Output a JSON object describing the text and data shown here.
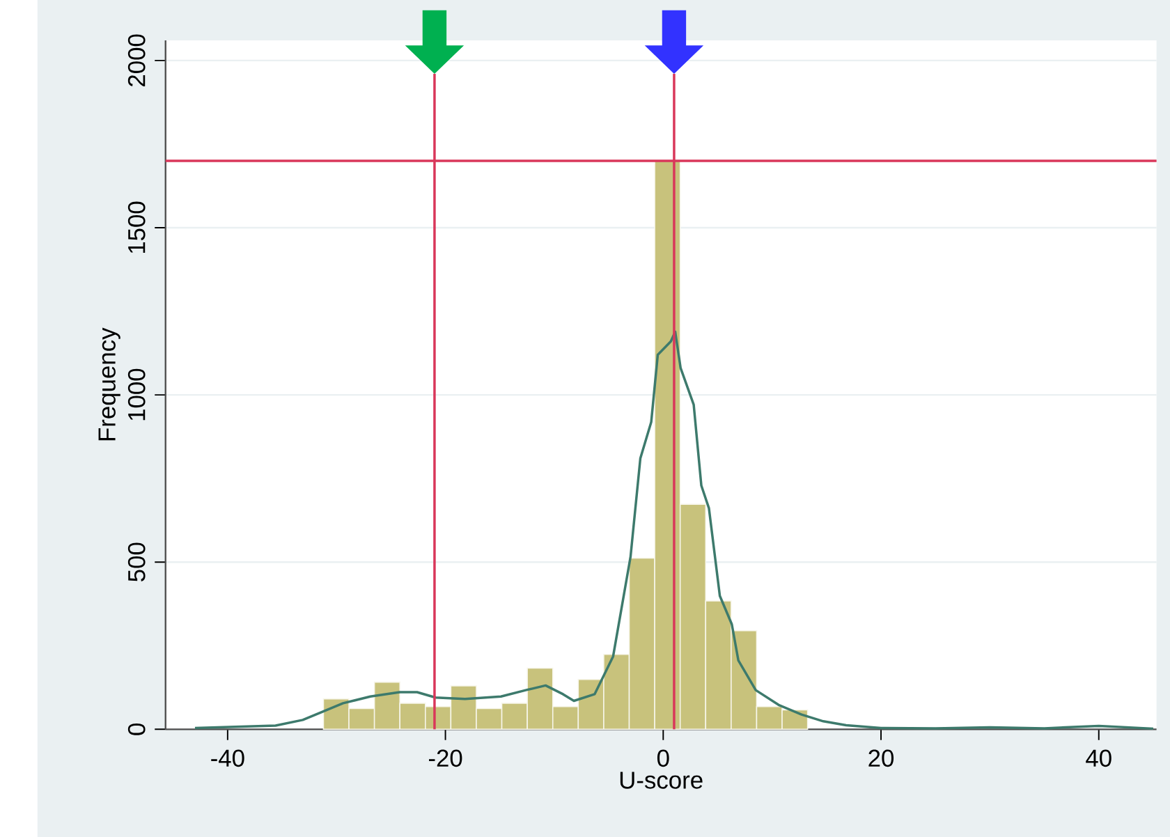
{
  "chart_data": {
    "type": "histogram",
    "xlabel": "U-score",
    "ylabel": "Frequency",
    "xlim": [
      -45.7,
      45.3
    ],
    "ylim": [
      0,
      2060
    ],
    "xticks": [
      -40,
      -20,
      0,
      20,
      40
    ],
    "yticks": [
      0,
      500,
      1000,
      1500,
      2000
    ],
    "grid": "y",
    "series": [
      {
        "color": "#c8c27c",
        "bins": [
          -31.2,
          -28.86,
          -26.52,
          -24.18,
          -21.84,
          -19.5,
          -17.16,
          -14.82,
          -12.48,
          -10.14,
          -7.8,
          -5.46,
          -3.12,
          -0.78,
          1.56,
          3.9,
          6.24,
          8.58,
          10.92,
          13.26
        ],
        "values": [
          91,
          62,
          141,
          78,
          68,
          130,
          62,
          78,
          183,
          68,
          149,
          224,
          512,
          1700,
          673,
          384,
          295,
          68,
          58
        ]
      },
      {
        "type": "line",
        "color": "#3d7a6c",
        "x": [
          -43,
          -35.6,
          -33.1,
          -31.4,
          -29.4,
          -26.9,
          -24.2,
          -22.6,
          -20.9,
          -18.2,
          -14.9,
          -12.5,
          -10.8,
          -9.2,
          -8.2,
          -6.3,
          -4.6,
          -3.0,
          -2.1,
          -1.1,
          -0.5,
          0.7,
          1.1,
          1.6,
          2.8,
          3.5,
          4.2,
          5.2,
          6.3,
          6.9,
          8.5,
          10.6,
          12.7,
          14.7,
          16.8,
          20,
          25,
          30,
          35,
          40,
          45
        ],
        "values": [
          4,
          11,
          28,
          51,
          78,
          98,
          111,
          111,
          95,
          91,
          98,
          118,
          131,
          105,
          85,
          105,
          218,
          516,
          810,
          919,
          1120,
          1160,
          1189,
          1080,
          971,
          729,
          661,
          399,
          314,
          206,
          117,
          73,
          44,
          24,
          12,
          4,
          3,
          6,
          3,
          10,
          2
        ]
      }
    ],
    "ref_lines": [
      {
        "axis": "x",
        "value": -21,
        "color": "#d9375a"
      },
      {
        "axis": "x",
        "value": 1,
        "color": "#d9375a"
      },
      {
        "axis": "y",
        "value": 1700,
        "color": "#d9375a"
      }
    ]
  }
}
